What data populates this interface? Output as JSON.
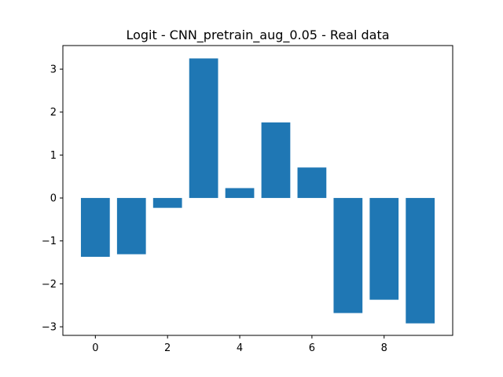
{
  "chart_data": {
    "type": "bar",
    "title": "Logit - CNN_pretrain_aug_0.05 - Real data",
    "xlabel": "",
    "ylabel": "",
    "categories": [
      0,
      1,
      2,
      3,
      4,
      5,
      6,
      7,
      8,
      9
    ],
    "values": [
      -1.37,
      -1.31,
      -0.23,
      3.25,
      0.23,
      1.76,
      0.71,
      -2.68,
      -2.37,
      -2.92
    ],
    "xlim": [
      -0.9,
      9.9
    ],
    "ylim": [
      -3.2,
      3.55
    ],
    "xticks": [
      0,
      2,
      4,
      6,
      8
    ],
    "xtick_labels": [
      "0",
      "2",
      "4",
      "6",
      "8"
    ],
    "yticks": [
      -3,
      -2,
      -1,
      0,
      1,
      2,
      3
    ],
    "ytick_labels": [
      "−3",
      "−2",
      "−1",
      "0",
      "1",
      "2",
      "3"
    ],
    "grid": false,
    "legend": "none",
    "bar_color": "#1f77b4"
  }
}
